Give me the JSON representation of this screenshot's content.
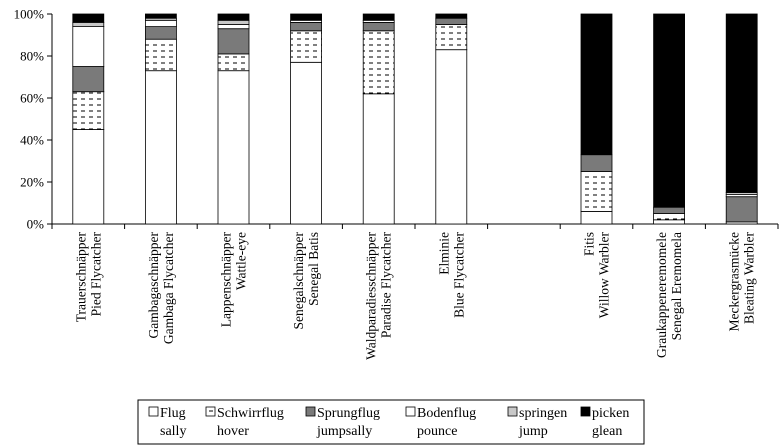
{
  "chart_data": {
    "type": "bar",
    "stacked": true,
    "percent": true,
    "categories": [
      {
        "de": "Trauerschnäpper",
        "en": "Pied Flycatcher"
      },
      {
        "de": "Gambagaschnäpper",
        "en": "Gambaga Flycatcher"
      },
      {
        "de": "Lappenschnäpper",
        "en": "Wattle-eye"
      },
      {
        "de": "Senegalschnäpper",
        "en": "Senegal Batis"
      },
      {
        "de": "Waldparadiesschnäpper",
        "en": "Paradise Flycatcher"
      },
      {
        "de": "Elminie",
        "en": "Blue Flycatcher"
      },
      {
        "de": "",
        "en": ""
      },
      {
        "de": "Fitis",
        "en": "Willow Warbler"
      },
      {
        "de": "Graukappeneremomele",
        "en": "Senegal Eremomela"
      },
      {
        "de": "Meckergrasmücke",
        "en": "Bleating Warbler"
      }
    ],
    "series": [
      {
        "name": "Flug",
        "name2": "sally",
        "pattern": "white",
        "values": [
          45,
          73,
          73,
          77,
          62,
          83,
          null,
          6,
          2,
          1
        ]
      },
      {
        "name": "Schwirrflug",
        "name2": "hover",
        "pattern": "dashes",
        "values": [
          18,
          15,
          8,
          15,
          30,
          12,
          null,
          19,
          3,
          0
        ]
      },
      {
        "name": "Sprungflug",
        "name2": "jumpsally",
        "pattern": "gray",
        "values": [
          12,
          6,
          12,
          4,
          4,
          3,
          null,
          8,
          3,
          12
        ]
      },
      {
        "name": "Bodenflug",
        "name2": "pounce",
        "pattern": "white",
        "values": [
          19,
          3,
          2,
          1,
          1,
          0,
          null,
          0,
          0,
          1
        ]
      },
      {
        "name": "springen",
        "name2": "jump",
        "pattern": "lightgray",
        "values": [
          2,
          1,
          2,
          0,
          0,
          0,
          null,
          0,
          0,
          1
        ]
      },
      {
        "name": "picken",
        "name2": "glean",
        "pattern": "black",
        "values": [
          4,
          2,
          3,
          3,
          3,
          2,
          null,
          67,
          92,
          85
        ]
      }
    ],
    "yticks": [
      "0%",
      "20%",
      "40%",
      "60%",
      "80%",
      "100%"
    ],
    "ylim": [
      0,
      100
    ],
    "grid": false,
    "legend_placement": "bottom",
    "colors": {
      "white": "#ffffff",
      "gray": "#7a7a7a",
      "lightgray": "#c8c8c8",
      "black": "#000000",
      "stroke": "#000000"
    }
  }
}
